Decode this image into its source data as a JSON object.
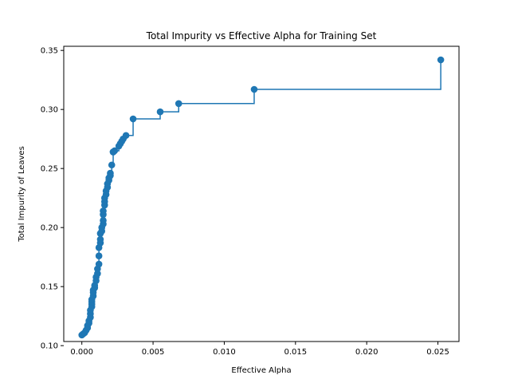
{
  "chart_data": {
    "type": "line",
    "title": "Total Impurity vs Effective Alpha for Training Set",
    "xlabel": "Effective Alpha",
    "ylabel": "Total Impurity of Leaves",
    "xlim": [
      -0.00127,
      0.02648
    ],
    "ylim": [
      0.1035,
      0.3535
    ],
    "xticks": [
      0.0,
      0.005,
      0.01,
      0.015,
      0.02,
      0.025
    ],
    "xtick_labels": [
      "0.000",
      "0.005",
      "0.010",
      "0.015",
      "0.020",
      "0.025"
    ],
    "yticks": [
      0.1,
      0.15,
      0.2,
      0.25,
      0.3,
      0.35
    ],
    "ytick_labels": [
      "0.10",
      "0.15",
      "0.20",
      "0.25",
      "0.30",
      "0.35"
    ],
    "grid": false,
    "drawstyle": "steps-post",
    "marker": "o",
    "color": "#1f77b4",
    "x": [
      0.0,
      0.0001,
      0.0002,
      0.0003,
      0.0004,
      0.0004,
      0.0005,
      0.0005,
      0.0006,
      0.0006,
      0.0006,
      0.0007,
      0.0007,
      0.0007,
      0.0007,
      0.0008,
      0.0008,
      0.0008,
      0.0009,
      0.0009,
      0.001,
      0.001,
      0.0011,
      0.0011,
      0.0012,
      0.0012,
      0.0012,
      0.0013,
      0.0013,
      0.0013,
      0.0014,
      0.0014,
      0.0015,
      0.0015,
      0.0015,
      0.0015,
      0.0016,
      0.0016,
      0.0016,
      0.0017,
      0.0017,
      0.0018,
      0.0018,
      0.0019,
      0.0019,
      0.002,
      0.002,
      0.0021,
      0.0022,
      0.0022,
      0.0023,
      0.0026,
      0.0027,
      0.0028,
      0.0029,
      0.0031,
      0.0036,
      0.0055,
      0.0068,
      0.0121,
      0.0252
    ],
    "y": [
      0.109,
      0.11,
      0.111,
      0.113,
      0.115,
      0.117,
      0.119,
      0.121,
      0.124,
      0.127,
      0.13,
      0.133,
      0.135,
      0.137,
      0.139,
      0.142,
      0.145,
      0.147,
      0.149,
      0.151,
      0.155,
      0.158,
      0.161,
      0.165,
      0.169,
      0.176,
      0.183,
      0.187,
      0.19,
      0.195,
      0.197,
      0.2,
      0.203,
      0.206,
      0.211,
      0.214,
      0.219,
      0.222,
      0.225,
      0.228,
      0.231,
      0.234,
      0.237,
      0.24,
      0.242,
      0.244,
      0.246,
      0.253,
      0.264,
      0.264,
      0.265,
      0.269,
      0.271,
      0.273,
      0.275,
      0.278,
      0.292,
      0.298,
      0.305,
      0.317,
      0.342
    ]
  }
}
